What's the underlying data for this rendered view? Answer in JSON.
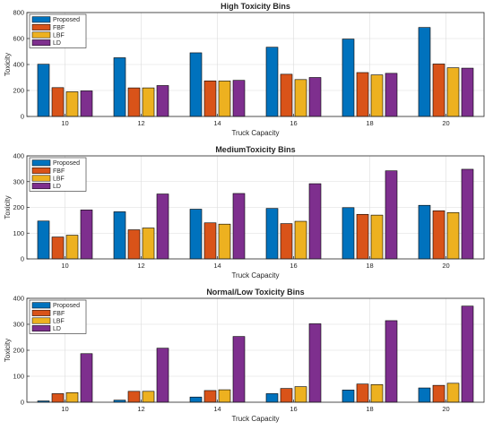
{
  "chart_data": [
    {
      "type": "bar",
      "title": "High Toxicity Bins",
      "xlabel": "Truck Capacity",
      "ylabel": "Toxicity",
      "categories": [
        "10",
        "12",
        "14",
        "16",
        "18",
        "20"
      ],
      "ylim": [
        0,
        800
      ],
      "yticks": [
        0,
        200,
        400,
        600,
        800
      ],
      "legend_position": "top-left",
      "series": [
        {
          "name": "Proposed",
          "color": "#0072BD",
          "values": [
            402,
            452,
            490,
            533,
            596,
            685
          ]
        },
        {
          "name": "FBF",
          "color": "#D95319",
          "values": [
            222,
            220,
            274,
            325,
            338,
            404
          ]
        },
        {
          "name": "LBF",
          "color": "#EDB120",
          "values": [
            190,
            220,
            273,
            284,
            320,
            375
          ]
        },
        {
          "name": "LD",
          "color": "#7E2F8E",
          "values": [
            197,
            238,
            278,
            300,
            332,
            372
          ]
        }
      ]
    },
    {
      "type": "bar",
      "title": "MediumToxicity Bins",
      "xlabel": "Truck Capacity",
      "ylabel": "Toxicity",
      "categories": [
        "10",
        "12",
        "14",
        "16",
        "18",
        "20"
      ],
      "ylim": [
        0,
        400
      ],
      "yticks": [
        0,
        100,
        200,
        300,
        400
      ],
      "legend_position": "top-left",
      "series": [
        {
          "name": "Proposed",
          "color": "#0072BD",
          "values": [
            147,
            183,
            193,
            196,
            199,
            208
          ]
        },
        {
          "name": "FBF",
          "color": "#D95319",
          "values": [
            85,
            113,
            140,
            137,
            173,
            187
          ]
        },
        {
          "name": "LBF",
          "color": "#EDB120",
          "values": [
            92,
            120,
            135,
            146,
            170,
            180
          ]
        },
        {
          "name": "LD",
          "color": "#7E2F8E",
          "values": [
            190,
            252,
            254,
            292,
            342,
            348
          ]
        }
      ]
    },
    {
      "type": "bar",
      "title": "Normal/Low Toxicity Bins",
      "xlabel": "Truck Capacity",
      "ylabel": "Toxicity",
      "categories": [
        "10",
        "12",
        "14",
        "16",
        "18",
        "20"
      ],
      "ylim": [
        0,
        400
      ],
      "yticks": [
        0,
        100,
        200,
        300,
        400
      ],
      "legend_position": "top-left",
      "series": [
        {
          "name": "Proposed",
          "color": "#0072BD",
          "values": [
            5,
            8,
            20,
            33,
            47,
            55
          ]
        },
        {
          "name": "FBF",
          "color": "#D95319",
          "values": [
            33,
            42,
            45,
            53,
            70,
            65
          ]
        },
        {
          "name": "LBF",
          "color": "#EDB120",
          "values": [
            37,
            42,
            48,
            60,
            68,
            73
          ]
        },
        {
          "name": "LD",
          "color": "#7E2F8E",
          "values": [
            187,
            208,
            253,
            302,
            314,
            370
          ]
        }
      ]
    }
  ]
}
